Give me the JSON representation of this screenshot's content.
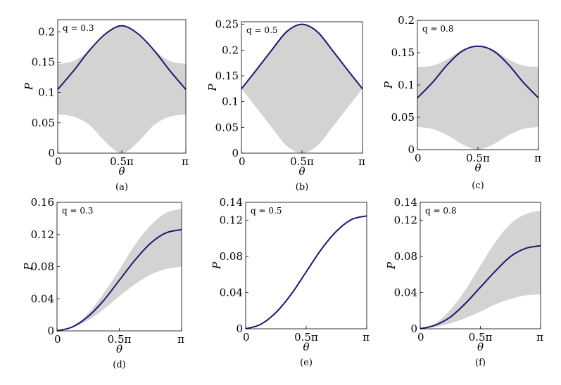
{
  "colors": {
    "band": "#d3d3d3",
    "curve": "#1a1a6e",
    "axis": "#000000"
  },
  "chart_data": [
    {
      "id": "a",
      "type": "area",
      "caption": "(a)",
      "annotation": "q = 0.3",
      "xlabel": "θ",
      "ylabel": "P",
      "xlim": [
        0,
        3.14159
      ],
      "ylim": [
        0,
        0.22
      ],
      "xticks": [
        0,
        1.5708,
        3.14159
      ],
      "xtick_labels": [
        "0",
        "0.5π",
        "π"
      ],
      "yticks": [
        0,
        0.05,
        0.1,
        0.15,
        0.2
      ],
      "ytick_labels": [
        "0",
        "0.05",
        "0.1",
        "0.15",
        "0.2"
      ],
      "series": [
        {
          "name": "P",
          "x": [
            0,
            0.3927,
            0.7854,
            1.1781,
            1.5708,
            1.9635,
            2.3562,
            2.7489,
            3.14159
          ],
          "values": [
            0.105,
            0.136,
            0.17,
            0.197,
            0.21,
            0.197,
            0.17,
            0.136,
            0.105
          ]
        }
      ],
      "band": {
        "x": [
          0,
          0.3927,
          0.7854,
          1.1781,
          1.5708,
          1.9635,
          2.3562,
          2.7489,
          3.14159
        ],
        "lower": [
          0.064,
          0.06,
          0.046,
          0.018,
          0.0,
          0.018,
          0.046,
          0.06,
          0.064
        ],
        "upper": [
          0.147,
          0.152,
          0.17,
          0.197,
          0.21,
          0.197,
          0.17,
          0.152,
          0.147
        ]
      }
    },
    {
      "id": "b",
      "type": "area",
      "caption": "(b)",
      "annotation": "q = 0.5",
      "xlabel": "θ",
      "ylabel": "P",
      "xlim": [
        0,
        3.14159
      ],
      "ylim": [
        0,
        0.255
      ],
      "xticks": [
        0,
        1.5708,
        3.14159
      ],
      "xtick_labels": [
        "0",
        "0.5π",
        "π"
      ],
      "yticks": [
        0,
        0.05,
        0.1,
        0.15,
        0.2,
        0.25
      ],
      "ytick_labels": [
        "0",
        "0.05",
        "0.1",
        "0.15",
        "0.2",
        "0.25"
      ],
      "series": [
        {
          "name": "P",
          "x": [
            0,
            0.3927,
            0.7854,
            1.1781,
            1.5708,
            1.9635,
            2.3562,
            2.7489,
            3.14159
          ],
          "values": [
            0.125,
            0.162,
            0.2,
            0.236,
            0.25,
            0.236,
            0.2,
            0.162,
            0.125
          ]
        }
      ],
      "band": {
        "x": [
          0,
          0.3927,
          0.7854,
          1.1781,
          1.5708,
          1.9635,
          2.3562,
          2.7489,
          3.14159
        ],
        "lower": [
          0.125,
          0.088,
          0.05,
          0.014,
          0.0,
          0.014,
          0.05,
          0.088,
          0.125
        ],
        "upper": [
          0.125,
          0.162,
          0.2,
          0.236,
          0.25,
          0.236,
          0.2,
          0.162,
          0.125
        ]
      }
    },
    {
      "id": "c",
      "type": "area",
      "caption": "(c)",
      "annotation": "q = 0.8",
      "xlabel": "θ",
      "ylabel": "P",
      "xlim": [
        0,
        3.14159
      ],
      "ylim": [
        0,
        0.2
      ],
      "xticks": [
        0,
        1.5708,
        3.14159
      ],
      "xtick_labels": [
        "0",
        "0.5π",
        "π"
      ],
      "yticks": [
        0,
        0.05,
        0.1,
        0.15,
        0.2
      ],
      "ytick_labels": [
        "0",
        "0.05",
        "0.1",
        "0.15",
        "0.2"
      ],
      "series": [
        {
          "name": "P",
          "x": [
            0,
            0.3927,
            0.7854,
            1.1781,
            1.5708,
            1.9635,
            2.3562,
            2.7489,
            3.14159
          ],
          "values": [
            0.08,
            0.104,
            0.132,
            0.153,
            0.16,
            0.153,
            0.132,
            0.104,
            0.08
          ]
        }
      ],
      "band": {
        "x": [
          0,
          0.3927,
          0.7854,
          1.1781,
          1.5708,
          1.9635,
          2.3562,
          2.7489,
          3.14159
        ],
        "lower": [
          0.035,
          0.032,
          0.022,
          0.008,
          0.0,
          0.008,
          0.022,
          0.032,
          0.035
        ],
        "upper": [
          0.128,
          0.13,
          0.14,
          0.155,
          0.16,
          0.155,
          0.14,
          0.13,
          0.128
        ]
      }
    },
    {
      "id": "d",
      "type": "area",
      "caption": "(d)",
      "annotation": "q = 0.3",
      "xlabel": "θ",
      "ylabel": "P",
      "xlim": [
        0,
        3.14159
      ],
      "ylim": [
        0,
        0.16
      ],
      "xticks": [
        0,
        1.5708,
        3.14159
      ],
      "xtick_labels": [
        "0",
        "0.5π",
        "π"
      ],
      "yticks": [
        0,
        0.04,
        0.08,
        0.12,
        0.16
      ],
      "ytick_labels": [
        "0",
        "0.04",
        "0.08",
        "0.12",
        "0.16"
      ],
      "series": [
        {
          "name": "P",
          "x": [
            0,
            0.3927,
            0.7854,
            1.1781,
            1.5708,
            1.9635,
            2.3562,
            2.7489,
            3.14159
          ],
          "values": [
            0.0,
            0.005,
            0.018,
            0.038,
            0.063,
            0.088,
            0.109,
            0.122,
            0.126
          ]
        }
      ],
      "band": {
        "x": [
          0,
          0.3927,
          0.7854,
          1.1781,
          1.5708,
          1.9635,
          2.3562,
          2.7489,
          3.14159
        ],
        "lower": [
          0.0,
          0.004,
          0.013,
          0.027,
          0.043,
          0.058,
          0.07,
          0.077,
          0.08
        ],
        "upper": [
          0.0,
          0.006,
          0.022,
          0.047,
          0.076,
          0.107,
          0.131,
          0.147,
          0.152
        ]
      }
    },
    {
      "id": "e",
      "type": "line",
      "caption": "(e)",
      "annotation": "q = 0.5",
      "xlabel": "θ",
      "ylabel": "P",
      "xlim": [
        0,
        3.14159
      ],
      "ylim": [
        0,
        0.14
      ],
      "xticks": [
        0,
        1.5708,
        3.14159
      ],
      "xtick_labels": [
        "0",
        "0.5π",
        "π"
      ],
      "yticks": [
        0,
        0.04,
        0.08,
        0.12
      ],
      "ytick_labels": [
        "0",
        "0.04",
        "0.08",
        "0.12"
      ],
      "extra_ytick_label": {
        "value": 0.14,
        "label": "0.14"
      },
      "series": [
        {
          "name": "P",
          "x": [
            0,
            0.3927,
            0.7854,
            1.1781,
            1.5708,
            1.9635,
            2.3562,
            2.7489,
            3.14159
          ],
          "values": [
            0.0,
            0.005,
            0.018,
            0.038,
            0.063,
            0.088,
            0.108,
            0.121,
            0.125
          ]
        }
      ]
    },
    {
      "id": "f",
      "type": "area",
      "caption": "(f)",
      "annotation": "q = 0.8",
      "xlabel": "θ",
      "ylabel": "P",
      "xlim": [
        0,
        3.14159
      ],
      "ylim": [
        0,
        0.14
      ],
      "xticks": [
        0,
        1.5708,
        3.14159
      ],
      "xtick_labels": [
        "0",
        "0.5π",
        "π"
      ],
      "yticks": [
        0,
        0.04,
        0.08,
        0.12
      ],
      "ytick_labels": [
        "0",
        "0.04",
        "0.08",
        "0.12"
      ],
      "extra_ytick_label": {
        "value": 0.14,
        "label": "0.14"
      },
      "series": [
        {
          "name": "P",
          "x": [
            0,
            0.3927,
            0.7854,
            1.1781,
            1.5708,
            1.9635,
            2.3562,
            2.7489,
            3.14159
          ],
          "values": [
            0.0,
            0.004,
            0.013,
            0.028,
            0.046,
            0.064,
            0.08,
            0.089,
            0.092
          ]
        }
      ],
      "band": {
        "x": [
          0,
          0.3927,
          0.7854,
          1.1781,
          1.5708,
          1.9635,
          2.3562,
          2.7489,
          3.14159
        ],
        "lower": [
          0.0,
          0.002,
          0.006,
          0.012,
          0.019,
          0.027,
          0.033,
          0.037,
          0.038
        ],
        "upper": [
          0.0,
          0.006,
          0.021,
          0.043,
          0.07,
          0.096,
          0.116,
          0.127,
          0.131
        ]
      }
    }
  ]
}
